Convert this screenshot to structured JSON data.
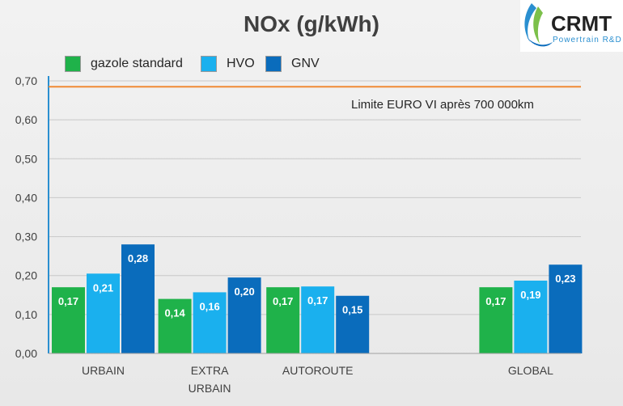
{
  "logo": {
    "name": "CRMT",
    "tagline": "Powertrain R&D"
  },
  "chart_data": {
    "type": "bar",
    "title": "NOx (g/kWh)",
    "categories": [
      "URBAIN",
      "EXTRA URBAIN",
      "AUTOROUTE",
      "",
      "GLOBAL"
    ],
    "category_lines": [
      [
        "URBAIN"
      ],
      [
        "EXTRA",
        "URBAIN"
      ],
      [
        "AUTOROUTE"
      ],
      [],
      [
        "GLOBAL"
      ]
    ],
    "series": [
      {
        "name": "gazole standard",
        "color": "#1fb24a",
        "values": [
          0.17,
          0.14,
          0.17,
          null,
          0.17
        ]
      },
      {
        "name": "HVO",
        "color": "#1ab0ee",
        "values": [
          0.205,
          0.157,
          0.172,
          null,
          0.187
        ],
        "labels": [
          "0,21",
          "0,16",
          "0,17",
          "",
          "0,19"
        ]
      },
      {
        "name": "GNV",
        "color": "#0a6cbc",
        "values": [
          0.28,
          0.195,
          0.148,
          null,
          0.228
        ],
        "labels": [
          "0,28",
          "0,20",
          "0,15",
          "",
          "0,23"
        ]
      }
    ],
    "series_labels": [
      [
        "0,17",
        "0,14",
        "0,17",
        "",
        "0,17"
      ],
      [
        "0,21",
        "0,16",
        "0,17",
        "",
        "0,19"
      ],
      [
        "0,28",
        "0,20",
        "0,15",
        "",
        "0,23"
      ]
    ],
    "y_ticks": [
      "0,00",
      "0,10",
      "0,20",
      "0,30",
      "0,40",
      "0,50",
      "0,60",
      "0,70"
    ],
    "ylim": [
      0,
      0.7
    ],
    "reference_line": {
      "value": 0.685,
      "label": "Limite EURO VI après 700 000km",
      "color": "#f08a34"
    },
    "grid": true,
    "legend_position": "top-left"
  }
}
